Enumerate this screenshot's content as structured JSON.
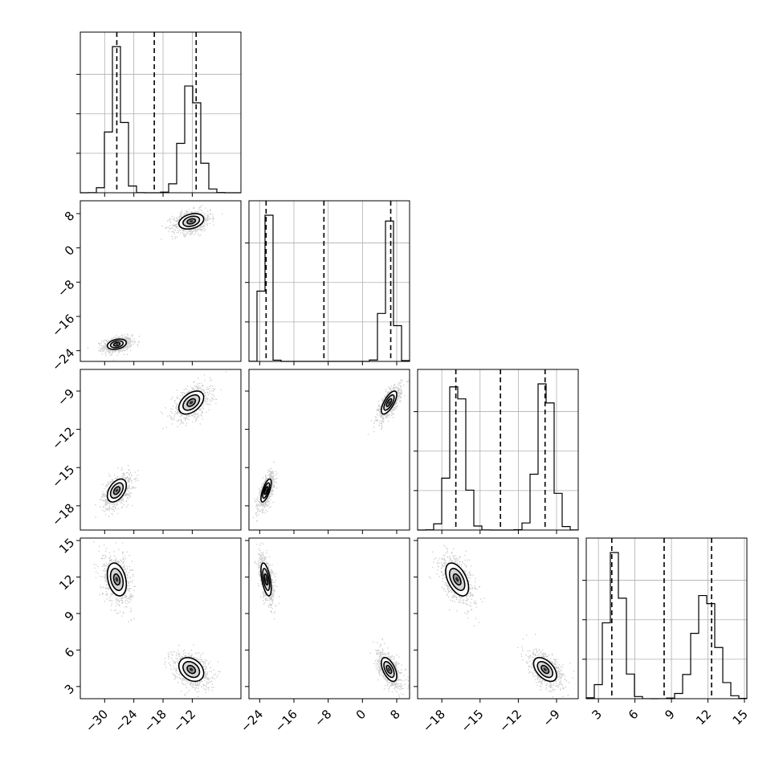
{
  "chart_data": {
    "type": "corner",
    "dimensions": 4,
    "grid_on_diagonal": true,
    "parameters": [
      {
        "range": [
          -35,
          -2
        ],
        "ticks": [
          -30,
          -24,
          -18,
          -12
        ],
        "tick_labels": [
          "−30",
          "−24",
          "−18",
          "−12"
        ],
        "modes": [
          {
            "mean": -27.5,
            "sd": 1.3
          },
          {
            "mean": -12.2,
            "sd": 1.7
          }
        ],
        "quantiles": [
          -27.5,
          -19.8,
          -11.2
        ]
      },
      {
        "range": [
          -26.5,
          11
        ],
        "ticks": [
          -24,
          -16,
          -8,
          0,
          8
        ],
        "tick_labels": [
          "−24",
          "−16",
          "−8",
          "0",
          "8"
        ],
        "modes": [
          {
            "mean": -22.5,
            "sd": 0.8
          },
          {
            "mean": 6.2,
            "sd": 1.2
          }
        ],
        "quantiles": [
          -22.5,
          -9.0,
          6.6
        ]
      },
      {
        "range": [
          -19.9,
          -7.3
        ],
        "ticks": [
          -18,
          -15,
          -12,
          -9
        ],
        "tick_labels": [
          "−18",
          "−15",
          "−12",
          "−9"
        ],
        "modes": [
          {
            "mean": -16.8,
            "sd": 0.6
          },
          {
            "mean": -9.9,
            "sd": 0.6
          }
        ],
        "quantiles": [
          -16.9,
          -13.4,
          -9.9
        ]
      },
      {
        "range": [
          2.0,
          15.2
        ],
        "ticks": [
          3,
          6,
          9,
          12,
          15
        ],
        "tick_labels": [
          "3",
          "6",
          "9",
          "12",
          "15"
        ],
        "modes": [
          {
            "mean": 4.4,
            "sd": 0.65
          },
          {
            "mean": 11.8,
            "sd": 0.9
          }
        ],
        "quantiles": [
          4.1,
          8.4,
          12.3
        ]
      }
    ],
    "clusters": [
      {
        "means": [
          -27.5,
          -22.5,
          -16.8,
          11.8
        ],
        "sds": [
          1.3,
          0.8,
          0.6,
          0.9
        ]
      },
      {
        "means": [
          -12.2,
          6.2,
          -9.9,
          4.4
        ],
        "sds": [
          1.7,
          1.2,
          0.6,
          0.65
        ]
      }
    ],
    "pair_correlations": {
      "1-0": 0.3,
      "2-0": 0.45,
      "2-1": 0.7,
      "3-0": -0.3,
      "3-1": -0.55,
      "3-2": -0.5
    },
    "contour_levels_sigma": [
      0.5,
      1.0,
      1.5
    ]
  }
}
